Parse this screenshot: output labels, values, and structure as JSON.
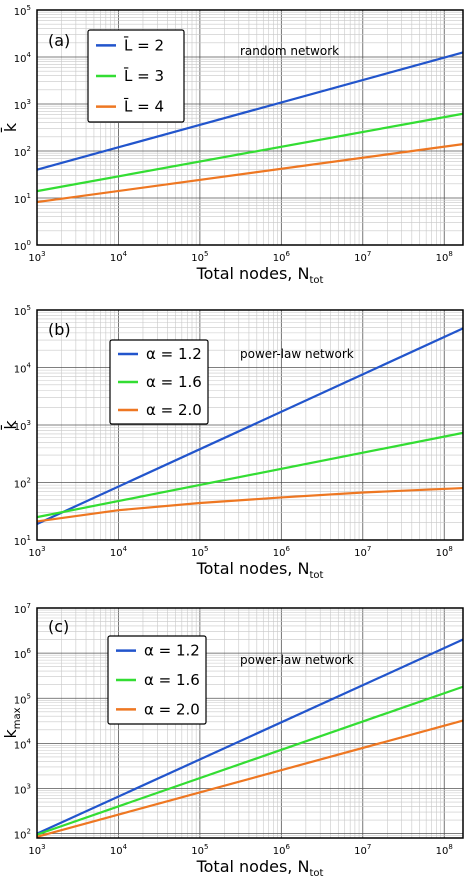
{
  "chart_data": [
    {
      "type": "line",
      "panel_label": "(a)",
      "annotation": "random network",
      "xlabel": "Total nodes, N",
      "xlabel_sub": "tot",
      "ylabel": "k̄",
      "ylabel_sub": "",
      "xscale": "log",
      "yscale": "log",
      "xlim": [
        1000,
        170000000
      ],
      "ylim": [
        1,
        100000
      ],
      "x_tick_exponents": [
        3,
        4,
        5,
        6,
        7,
        8
      ],
      "y_tick_exponents": [
        0,
        1,
        2,
        3,
        4,
        5
      ],
      "grid": true,
      "legend": "top-left",
      "series": [
        {
          "name": "L̄ = 2",
          "color": "#2255cc",
          "x": [
            1000,
            170000000
          ],
          "y": [
            40,
            12500
          ]
        },
        {
          "name": "L̄ = 3",
          "color": "#33dd33",
          "x": [
            1000,
            170000000
          ],
          "y": [
            14,
            620
          ]
        },
        {
          "name": "L̄ = 4",
          "color": "#ee7722",
          "x": [
            1000,
            170000000
          ],
          "y": [
            8.2,
            140
          ]
        }
      ]
    },
    {
      "type": "line",
      "panel_label": "(b)",
      "annotation": "power-law network",
      "xlabel": "Total nodes, N",
      "xlabel_sub": "tot",
      "ylabel": "k̄",
      "ylabel_sub": "",
      "xscale": "log",
      "yscale": "log",
      "xlim": [
        1000,
        170000000
      ],
      "ylim": [
        10,
        100000
      ],
      "x_tick_exponents": [
        3,
        4,
        5,
        6,
        7,
        8
      ],
      "y_tick_exponents": [
        1,
        2,
        3,
        4,
        5
      ],
      "grid": true,
      "legend": "top-left",
      "series": [
        {
          "name": "α = 1.2",
          "color": "#2255cc",
          "x": [
            1000,
            170000000
          ],
          "y": [
            19,
            48000
          ]
        },
        {
          "name": "α = 1.6",
          "color": "#33dd33",
          "x": [
            1000,
            170000000
          ],
          "y": [
            25,
            730
          ]
        },
        {
          "name": "α = 2.0",
          "color": "#ee7722",
          "x": [
            1000,
            10000,
            100000,
            1000000,
            10000000,
            170000000
          ],
          "y": [
            21,
            33,
            44,
            55,
            67,
            80
          ]
        }
      ]
    },
    {
      "type": "line",
      "panel_label": "(c)",
      "annotation": "power-law network",
      "xlabel": "Total nodes, N",
      "xlabel_sub": "tot",
      "ylabel": "k",
      "ylabel_sub": "max",
      "xscale": "log",
      "yscale": "log",
      "xlim": [
        1000,
        170000000
      ],
      "ylim": [
        80,
        10000000
      ],
      "x_tick_exponents": [
        3,
        4,
        5,
        6,
        7,
        8
      ],
      "y_tick_exponents": [
        2,
        3,
        4,
        5,
        6,
        7
      ],
      "grid": true,
      "legend": "top-left",
      "series": [
        {
          "name": "α = 1.2",
          "color": "#2255cc",
          "x": [
            1000,
            170000000
          ],
          "y": [
            100,
            2000000
          ]
        },
        {
          "name": "α = 1.6",
          "color": "#33dd33",
          "x": [
            1000,
            170000000
          ],
          "y": [
            95,
            180000
          ]
        },
        {
          "name": "α = 2.0",
          "color": "#ee7722",
          "x": [
            1000,
            170000000
          ],
          "y": [
            85,
            32000
          ]
        }
      ]
    }
  ]
}
